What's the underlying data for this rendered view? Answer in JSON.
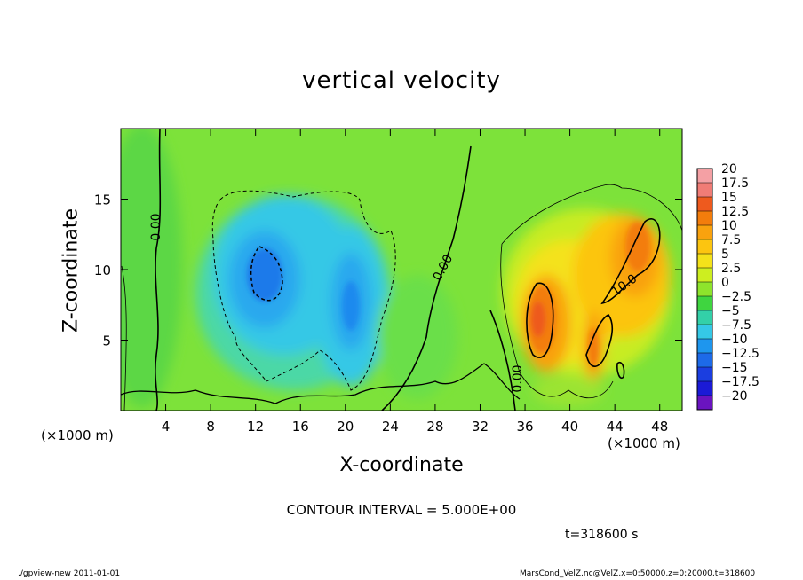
{
  "chart_data": {
    "type": "heatmap",
    "title": "vertical velocity",
    "xlabel": "X-coordinate",
    "ylabel": "Z-coordinate",
    "x_unit": "(×1000 m)",
    "y_unit": "(×1000 m)",
    "xlim": [
      0,
      50
    ],
    "ylim": [
      0,
      20
    ],
    "x_ticks": [
      4,
      8,
      12,
      16,
      20,
      24,
      28,
      32,
      36,
      40,
      44,
      48
    ],
    "y_ticks": [
      5,
      10,
      15
    ],
    "colorbar": {
      "levels": [
        "20",
        "17.5",
        "15",
        "12.5",
        "10",
        "7.5",
        "5",
        "2.5",
        "0",
        "-2.5",
        "-5",
        "-7.5",
        "-10",
        "-12.5",
        "-15",
        "-17.5",
        "-20"
      ],
      "colors": [
        "#f4a0a4",
        "#f07c76",
        "#ee5a1e",
        "#f37d0c",
        "#f9a20e",
        "#fcc510",
        "#f4e21a",
        "#cdee20",
        "#8ee42c",
        "#3fd540",
        "#33d0a8",
        "#35c8e6",
        "#1e96ee",
        "#1d6ae8",
        "#1b3ee0",
        "#1b1ad6",
        "#6a14c0"
      ]
    },
    "contour_labels": [
      "0.00",
      "0.00",
      "0.00",
      "10.0"
    ],
    "contour_interval": "CONTOUR INTERVAL = 5.000E+00",
    "time": "t=318600 s"
  },
  "footer": {
    "left": "./gpview-new  2011-01-01",
    "right": "MarsCond_VelZ.nc@VelZ,x=0:50000,z=0:20000,t=318600"
  }
}
